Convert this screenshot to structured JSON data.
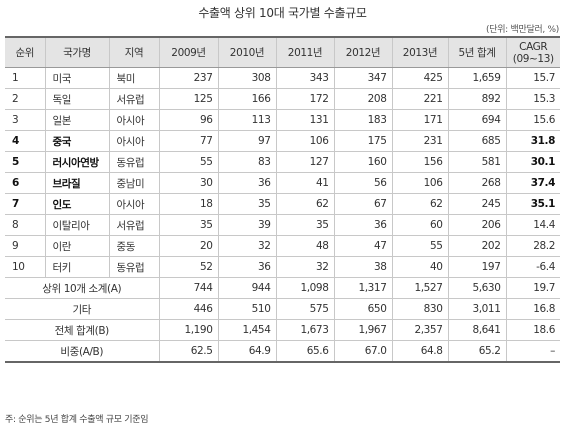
{
  "title": "수출액 상위 10대 국가별 수출규모",
  "unit": "(단위: 백만달러, %)",
  "headers": {
    "rank": "순위",
    "country": "국가명",
    "region": "지역",
    "y2009": "2009년",
    "y2010": "2010년",
    "y2011": "2011년",
    "y2012": "2012년",
    "y2013": "2013년",
    "total5": "5년 합계",
    "cagr": "CAGR (09~13)"
  },
  "rows": [
    {
      "rank": "1",
      "country": "미국",
      "region": "북미",
      "y2009": "237",
      "y2010": "308",
      "y2011": "343",
      "y2012": "347",
      "y2013": "425",
      "total5": "1,659",
      "cagr": "15.7"
    },
    {
      "rank": "2",
      "country": "독일",
      "region": "서유럽",
      "y2009": "125",
      "y2010": "166",
      "y2011": "172",
      "y2012": "208",
      "y2013": "221",
      "total5": "892",
      "cagr": "15.3"
    },
    {
      "rank": "3",
      "country": "일본",
      "region": "아시아",
      "y2009": "96",
      "y2010": "113",
      "y2011": "131",
      "y2012": "183",
      "y2013": "171",
      "total5": "694",
      "cagr": "15.6"
    },
    {
      "rank": "4",
      "country": "중국",
      "region": "아시아",
      "y2009": "77",
      "y2010": "97",
      "y2011": "106",
      "y2012": "175",
      "y2013": "231",
      "total5": "685",
      "cagr": "31.8"
    },
    {
      "rank": "5",
      "country": "러시아연방",
      "region": "동유럽",
      "y2009": "55",
      "y2010": "83",
      "y2011": "127",
      "y2012": "160",
      "y2013": "156",
      "total5": "581",
      "cagr": "30.1"
    },
    {
      "rank": "6",
      "country": "브라질",
      "region": "중남미",
      "y2009": "30",
      "y2010": "36",
      "y2011": "41",
      "y2012": "56",
      "y2013": "106",
      "total5": "268",
      "cagr": "37.4"
    },
    {
      "rank": "7",
      "country": "인도",
      "region": "아시아",
      "y2009": "18",
      "y2010": "35",
      "y2011": "62",
      "y2012": "67",
      "y2013": "62",
      "total5": "245",
      "cagr": "35.1"
    },
    {
      "rank": "8",
      "country": "이탈리아",
      "region": "서유럽",
      "y2009": "35",
      "y2010": "39",
      "y2011": "35",
      "y2012": "36",
      "y2013": "60",
      "total5": "206",
      "cagr": "14.4"
    },
    {
      "rank": "9",
      "country": "이란",
      "region": "중동",
      "y2009": "20",
      "y2010": "32",
      "y2011": "48",
      "y2012": "47",
      "y2013": "55",
      "total5": "202",
      "cagr": "28.2"
    },
    {
      "rank": "10",
      "country": "터키",
      "region": "동유럽",
      "y2009": "52",
      "y2010": "36",
      "y2011": "32",
      "y2012": "38",
      "y2013": "40",
      "total5": "197",
      "cagr": "-6.4"
    }
  ],
  "summary": [
    {
      "label": "상위 10개 소계(A)",
      "y2009": "744",
      "y2010": "944",
      "y2011": "1,098",
      "y2012": "1,317",
      "y2013": "1,527",
      "total5": "5,630",
      "cagr": "19.7"
    },
    {
      "label": "기타",
      "y2009": "446",
      "y2010": "510",
      "y2011": "575",
      "y2012": "650",
      "y2013": "830",
      "total5": "3,011",
      "cagr": "16.8"
    },
    {
      "label": "전체 합계(B)",
      "y2009": "1,190",
      "y2010": "1,454",
      "y2011": "1,673",
      "y2012": "1,967",
      "y2013": "2,357",
      "total5": "8,641",
      "cagr": "18.6"
    },
    {
      "label": "비중(A/B)",
      "y2009": "62.5",
      "y2010": "64.9",
      "y2011": "65.6",
      "y2012": "67.0",
      "y2013": "64.8",
      "total5": "65.2",
      "cagr": "–"
    }
  ],
  "note": "주: 순위는 5년 합계 수출액 규모 기준임"
}
